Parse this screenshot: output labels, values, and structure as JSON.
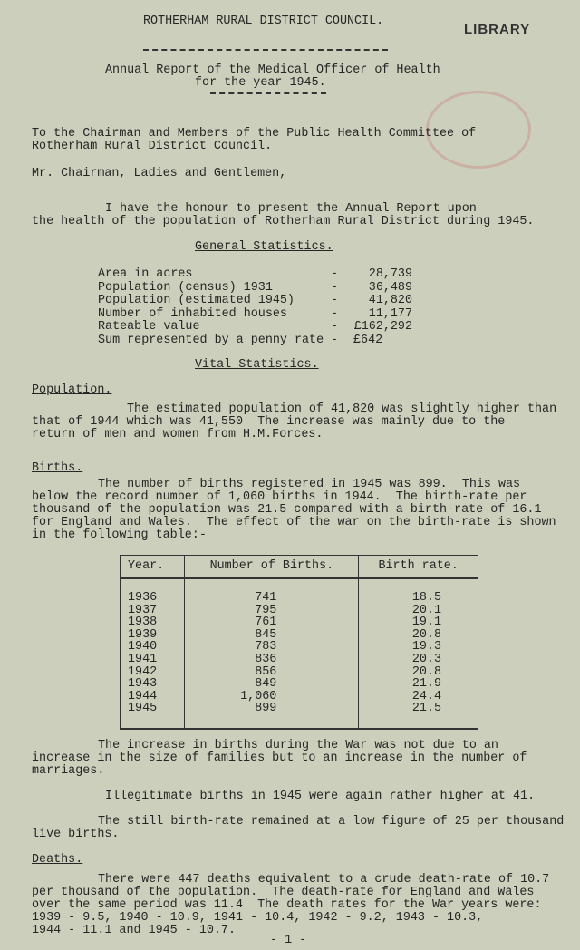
{
  "header": {
    "council": "ROTHERHAM RURAL DISTRICT COUNCIL.",
    "library_stamp": "LIBRARY"
  },
  "title": {
    "line1": "Annual Report of the Medical Officer of Health",
    "line2": "for the year 1945."
  },
  "address": {
    "line1": "To the Chairman and Members of the Public Health Committee of",
    "line2": "Rotherham Rural District Council."
  },
  "salutation": "Mr. Chairman, Ladies and Gentlemen,",
  "intro": {
    "line1": "I have the honour to present the Annual Report upon",
    "line2": "the health of the population of Rotherham Rural District during 1945."
  },
  "general_statistics": {
    "heading": "General Statistics.",
    "rows": [
      {
        "label": "Area in acres",
        "value": "28,739"
      },
      {
        "label": "Population (census) 1931",
        "value": "36,489"
      },
      {
        "label": "Population (estimated 1945)",
        "value": "41,820"
      },
      {
        "label": "Number of inhabited houses",
        "value": "11,177"
      },
      {
        "label": "Rateable value",
        "value": "£162,292"
      },
      {
        "label": "Sum represented by a penny rate",
        "value": "£642"
      }
    ]
  },
  "vital_statistics": {
    "heading": "Vital Statistics."
  },
  "population": {
    "heading": "Population.",
    "lines": [
      "The estimated population of 41,820 was slightly higher than",
      "that of 1944 which was 41,550  The increase was mainly due to the",
      "return of men and women from H.M.Forces."
    ]
  },
  "births": {
    "heading": "Births.",
    "lines": [
      "The number of births registered in 1945 was 899.  This was",
      "below the record number of 1,060 births in 1944.  The birth-rate per",
      "thousand of the population was 21.5 compared with a birth-rate of 16.1",
      "for England and Wales.  The effect of the war on the birth-rate is shown",
      "in the following table:-"
    ]
  },
  "births_table": {
    "headers": [
      "Year.",
      "Number of Births.",
      "Birth rate."
    ],
    "rows": [
      [
        "1936",
        "741",
        "18.5"
      ],
      [
        "1937",
        "795",
        "20.1"
      ],
      [
        "1938",
        "761",
        "19.1"
      ],
      [
        "1939",
        "845",
        "20.8"
      ],
      [
        "1940",
        "783",
        "19.3"
      ],
      [
        "1941",
        "836",
        "20.3"
      ],
      [
        "1942",
        "856",
        "20.8"
      ],
      [
        "1943",
        "849",
        "21.9"
      ],
      [
        "1944",
        "1,060",
        "24.4"
      ],
      [
        "1945",
        "899",
        "21.5"
      ]
    ]
  },
  "after_table": {
    "lines": [
      "The increase in births during the War was not due to an",
      "increase in the size of families but to an increase in the number of",
      "marriages."
    ]
  },
  "illegitimate": "Illegitimate births in 1945 were again rather higher at 41.",
  "still_birth": {
    "lines": [
      "The still birth-rate remained at a low figure of 25 per thousand",
      "live births."
    ]
  },
  "deaths": {
    "heading": "Deaths.",
    "lines": [
      "There were 447 deaths equivalent to a crude death-rate of 10.7",
      "per thousand of the population.  The death-rate for England and Wales",
      "over the same period was 11.4  The death rates for the War years were:",
      "1939 - 9.5, 1940 - 10.9, 1941 - 10.4, 1942 - 9.2, 1943 - 10.3,",
      "1944 - 11.1 and 1945 - 10.7."
    ]
  },
  "page_number": "- 1 -"
}
